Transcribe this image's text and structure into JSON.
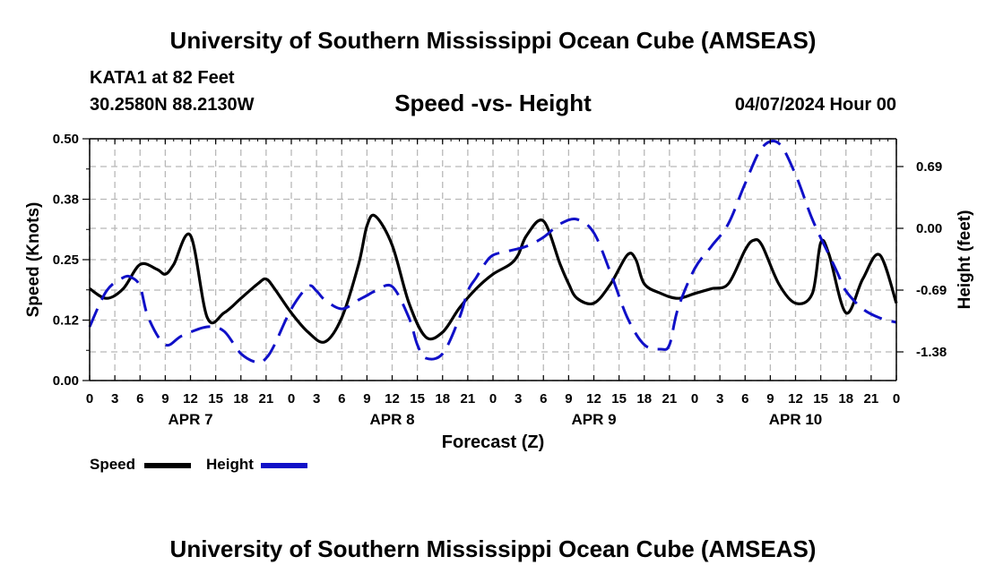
{
  "page": {
    "title": "University of Southern Mississippi Ocean Cube (AMSEAS)",
    "footer_title": "University of Southern Mississippi Ocean Cube (AMSEAS)",
    "station": "KATA1 at 82 Feet",
    "coords": "30.2580N  88.2130W",
    "subtitle": "Speed -vs- Height",
    "issued": "04/07/2024 Hour 00"
  },
  "legend": {
    "speed_label": "Speed",
    "height_label": "Height"
  },
  "colors": {
    "speed": "#000000",
    "height": "#1010c8",
    "grid": "#b8b8b8"
  },
  "chart_data": {
    "type": "line",
    "title": "Speed -vs- Height",
    "xlabel": "Forecast (Z)",
    "ylabel_left": "Speed (Knots)",
    "ylabel_right": "Height (feet)",
    "x_range_hours": [
      0,
      96
    ],
    "x_ticks": [
      0,
      3,
      6,
      9,
      12,
      15,
      18,
      21,
      24,
      27,
      30,
      33,
      36,
      39,
      42,
      45,
      48,
      51,
      54,
      57,
      60,
      63,
      66,
      69,
      72,
      75,
      78,
      81,
      84,
      87,
      90,
      93,
      96
    ],
    "x_tick_labels": [
      "0",
      "3",
      "6",
      "9",
      "12",
      "15",
      "18",
      "21",
      "0",
      "3",
      "6",
      "9",
      "12",
      "15",
      "18",
      "21",
      "0",
      "3",
      "6",
      "9",
      "12",
      "15",
      "18",
      "21",
      "0",
      "3",
      "6",
      "9",
      "12",
      "15",
      "18",
      "21",
      "0"
    ],
    "day_labels": [
      {
        "label": "APR 7",
        "hour": 12
      },
      {
        "label": "APR 8",
        "hour": 36
      },
      {
        "label": "APR 9",
        "hour": 60
      },
      {
        "label": "APR 10",
        "hour": 84
      }
    ],
    "left_axis": {
      "range": [
        0,
        0.5
      ],
      "ticks": [
        0.0,
        0.125,
        0.25,
        0.375,
        0.5
      ],
      "tick_labels": [
        "0.00",
        "0.12",
        "0.25",
        "0.38",
        "0.50"
      ]
    },
    "right_axis": {
      "range": [
        -1.7,
        1.0
      ],
      "ticks": [
        -1.38,
        -0.69,
        0.0,
        0.69
      ],
      "tick_labels": [
        "-1.38",
        "-0.69",
        "0.00",
        "0.69"
      ]
    },
    "grid": true,
    "series": [
      {
        "name": "Speed",
        "axis": "left",
        "style": "solid",
        "x": [
          0,
          2,
          4,
          6,
          8,
          9,
          10,
          12,
          14,
          16,
          18,
          20,
          21,
          22,
          24,
          26,
          28,
          30,
          32,
          33,
          34,
          36,
          38,
          40,
          42,
          44,
          46,
          48,
          50,
          51,
          52,
          54,
          56,
          57,
          58,
          60,
          62,
          64,
          65,
          66,
          68,
          70,
          72,
          74,
          76,
          78,
          79,
          80,
          82,
          84,
          86,
          87,
          88,
          90,
          92,
          94,
          96
        ],
        "values": [
          0.19,
          0.17,
          0.19,
          0.24,
          0.23,
          0.22,
          0.24,
          0.3,
          0.13,
          0.14,
          0.17,
          0.2,
          0.21,
          0.19,
          0.14,
          0.1,
          0.08,
          0.13,
          0.24,
          0.32,
          0.34,
          0.28,
          0.16,
          0.09,
          0.1,
          0.15,
          0.19,
          0.22,
          0.24,
          0.26,
          0.3,
          0.33,
          0.24,
          0.2,
          0.17,
          0.16,
          0.2,
          0.26,
          0.25,
          0.2,
          0.18,
          0.17,
          0.18,
          0.19,
          0.2,
          0.27,
          0.29,
          0.28,
          0.2,
          0.16,
          0.18,
          0.285,
          0.26,
          0.14,
          0.21,
          0.26,
          0.16
        ]
      },
      {
        "name": "Height",
        "axis": "right",
        "style": "dashed",
        "x": [
          0,
          2,
          4,
          5,
          6,
          7,
          9,
          11,
          14,
          16,
          18,
          20,
          21,
          22,
          24,
          26,
          27,
          28,
          30,
          32,
          33,
          34,
          36,
          38,
          39,
          40,
          42,
          44,
          45,
          46,
          47,
          48,
          50,
          52,
          54,
          56,
          58,
          60,
          62,
          64,
          66,
          68,
          69,
          70,
          72,
          74,
          76,
          78,
          80,
          82,
          84,
          86,
          88,
          89,
          90,
          92,
          94,
          96
        ],
        "values": [
          -1.1,
          -0.7,
          -0.55,
          -0.55,
          -0.65,
          -1.0,
          -1.3,
          -1.2,
          -1.1,
          -1.15,
          -1.4,
          -1.5,
          -1.45,
          -1.3,
          -0.9,
          -0.65,
          -0.7,
          -0.8,
          -0.9,
          -0.8,
          -0.75,
          -0.7,
          -0.65,
          -1.0,
          -1.3,
          -1.45,
          -1.4,
          -1.0,
          -0.7,
          -0.55,
          -0.4,
          -0.3,
          -0.25,
          -0.2,
          -0.1,
          0.05,
          0.1,
          -0.05,
          -0.5,
          -1.0,
          -1.3,
          -1.35,
          -1.3,
          -0.9,
          -0.45,
          -0.2,
          0.05,
          0.5,
          0.9,
          0.95,
          0.6,
          0.1,
          -0.3,
          -0.5,
          -0.7,
          -0.9,
          -1.0,
          -1.05
        ]
      }
    ]
  }
}
